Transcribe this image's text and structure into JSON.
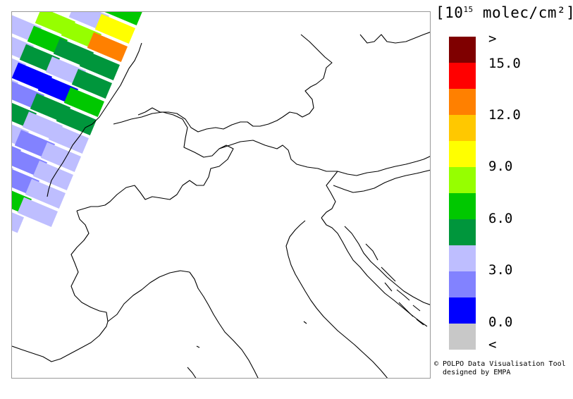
{
  "legend": {
    "unit_prefix": "[10",
    "unit_exp": "15",
    "unit_suffix": " molec/cm²]",
    "colors": [
      "#7f0000",
      "#ff0000",
      "#ff8000",
      "#ffc800",
      "#ffff00",
      "#96ff00",
      "#00c800",
      "#00963c",
      "#bebeff",
      "#8282ff",
      "#0000ff",
      "#c8c8c8"
    ],
    "over_label": ">",
    "under_label": "<",
    "ticks": [
      "15.0",
      "12.0",
      "9.0",
      "6.0",
      "3.0",
      "0.0"
    ]
  },
  "credit": {
    "line1": "© POLPO Data Visualisation Tool",
    "line2": "  designed by EMPA"
  },
  "map": {
    "coastline_color": "#000000",
    "pixel_colors": {
      "light_blue": "#bebeff",
      "mid_blue": "#8282ff",
      "blue": "#0000ff",
      "dark_green": "#00963c",
      "green": "#00c800",
      "yellow_green": "#96ff00",
      "yellow": "#ffff00",
      "orange": "#ff8000"
    }
  }
}
